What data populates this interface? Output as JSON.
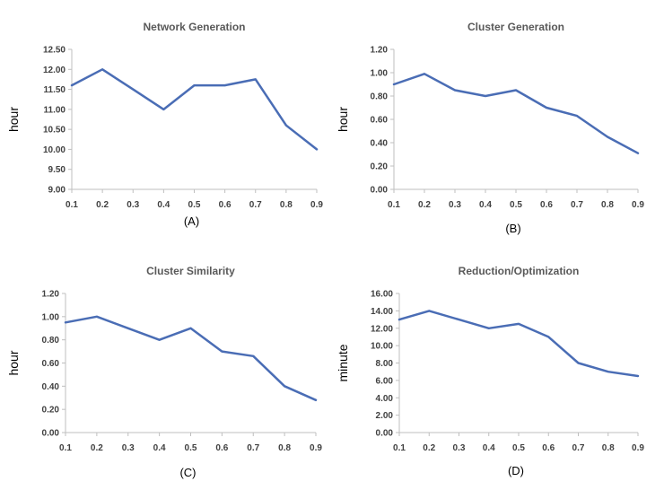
{
  "chart_data": [
    {
      "type": "line",
      "title": "Network Generation",
      "ylabel": "hour",
      "panel_label": "(A)",
      "x": [
        0.1,
        0.2,
        0.3,
        0.4,
        0.5,
        0.6,
        0.7,
        0.8,
        0.9
      ],
      "x_tick_labels": [
        "0.1",
        "0.2",
        "0.3",
        "0.4",
        "0.5",
        "0.6",
        "0.7",
        "0.8",
        "0.9"
      ],
      "ylim": [
        9.0,
        12.5
      ],
      "y_ticks": [
        9.0,
        9.5,
        10.0,
        10.5,
        11.0,
        11.5,
        12.0,
        12.5
      ],
      "y_tick_labels": [
        "9.00",
        "9.50",
        "10.00",
        "10.50",
        "11.00",
        "11.50",
        "12.00",
        "12.50"
      ],
      "series": [
        {
          "values": [
            11.6,
            12.0,
            11.5,
            11.0,
            11.6,
            11.6,
            11.75,
            10.6,
            10.0
          ],
          "color": "#4a6db5"
        }
      ],
      "grid": false
    },
    {
      "type": "line",
      "title": "Cluster Generation",
      "ylabel": "hour",
      "panel_label": "(B)",
      "x": [
        0.1,
        0.2,
        0.3,
        0.4,
        0.5,
        0.6,
        0.7,
        0.8,
        0.9
      ],
      "x_tick_labels": [
        "0.1",
        "0.2",
        "0.3",
        "0.4",
        "0.5",
        "0.6",
        "0.7",
        "0.8",
        "0.9"
      ],
      "ylim": [
        0.0,
        1.2
      ],
      "y_ticks": [
        0.0,
        0.2,
        0.4,
        0.6,
        0.8,
        1.0,
        1.2
      ],
      "y_tick_labels": [
        "0.00",
        "0.20",
        "0.40",
        "0.60",
        "0.80",
        "1.00",
        "1.20"
      ],
      "series": [
        {
          "values": [
            0.9,
            0.99,
            0.85,
            0.8,
            0.85,
            0.7,
            0.63,
            0.45,
            0.31
          ],
          "color": "#4a6db5"
        }
      ],
      "grid": false
    },
    {
      "type": "line",
      "title": "Cluster Similarity",
      "ylabel": "hour",
      "panel_label": "(C)",
      "x": [
        0.1,
        0.2,
        0.3,
        0.4,
        0.5,
        0.6,
        0.7,
        0.8,
        0.9
      ],
      "x_tick_labels": [
        "0.1",
        "0.2",
        "0.3",
        "0.4",
        "0.5",
        "0.6",
        "0.7",
        "0.8",
        "0.9"
      ],
      "ylim": [
        0.0,
        1.2
      ],
      "y_ticks": [
        0.0,
        0.2,
        0.4,
        0.6,
        0.8,
        1.0,
        1.2
      ],
      "y_tick_labels": [
        "0.00",
        "0.20",
        "0.40",
        "0.60",
        "0.80",
        "1.00",
        "1.20"
      ],
      "series": [
        {
          "values": [
            0.95,
            1.0,
            0.9,
            0.8,
            0.9,
            0.7,
            0.66,
            0.4,
            0.28
          ],
          "color": "#4a6db5"
        }
      ],
      "grid": false
    },
    {
      "type": "line",
      "title": "Reduction/Optimization",
      "ylabel": "minute",
      "panel_label": "(D)",
      "x": [
        0.1,
        0.2,
        0.3,
        0.4,
        0.5,
        0.6,
        0.7,
        0.8,
        0.9
      ],
      "x_tick_labels": [
        "0.1",
        "0.2",
        "0.3",
        "0.4",
        "0.5",
        "0.6",
        "0.7",
        "0.8",
        "0.9"
      ],
      "ylim": [
        0.0,
        16.0
      ],
      "y_ticks": [
        0,
        2,
        4,
        6,
        8,
        10,
        12,
        14,
        16
      ],
      "y_tick_labels": [
        "0.00",
        "2.00",
        "4.00",
        "6.00",
        "8.00",
        "10.00",
        "12.00",
        "14.00",
        "16.00"
      ],
      "series": [
        {
          "values": [
            13.0,
            14.0,
            13.0,
            12.0,
            12.5,
            11.0,
            8.0,
            7.0,
            6.5
          ],
          "color": "#4a6db5"
        }
      ],
      "grid": false
    }
  ]
}
